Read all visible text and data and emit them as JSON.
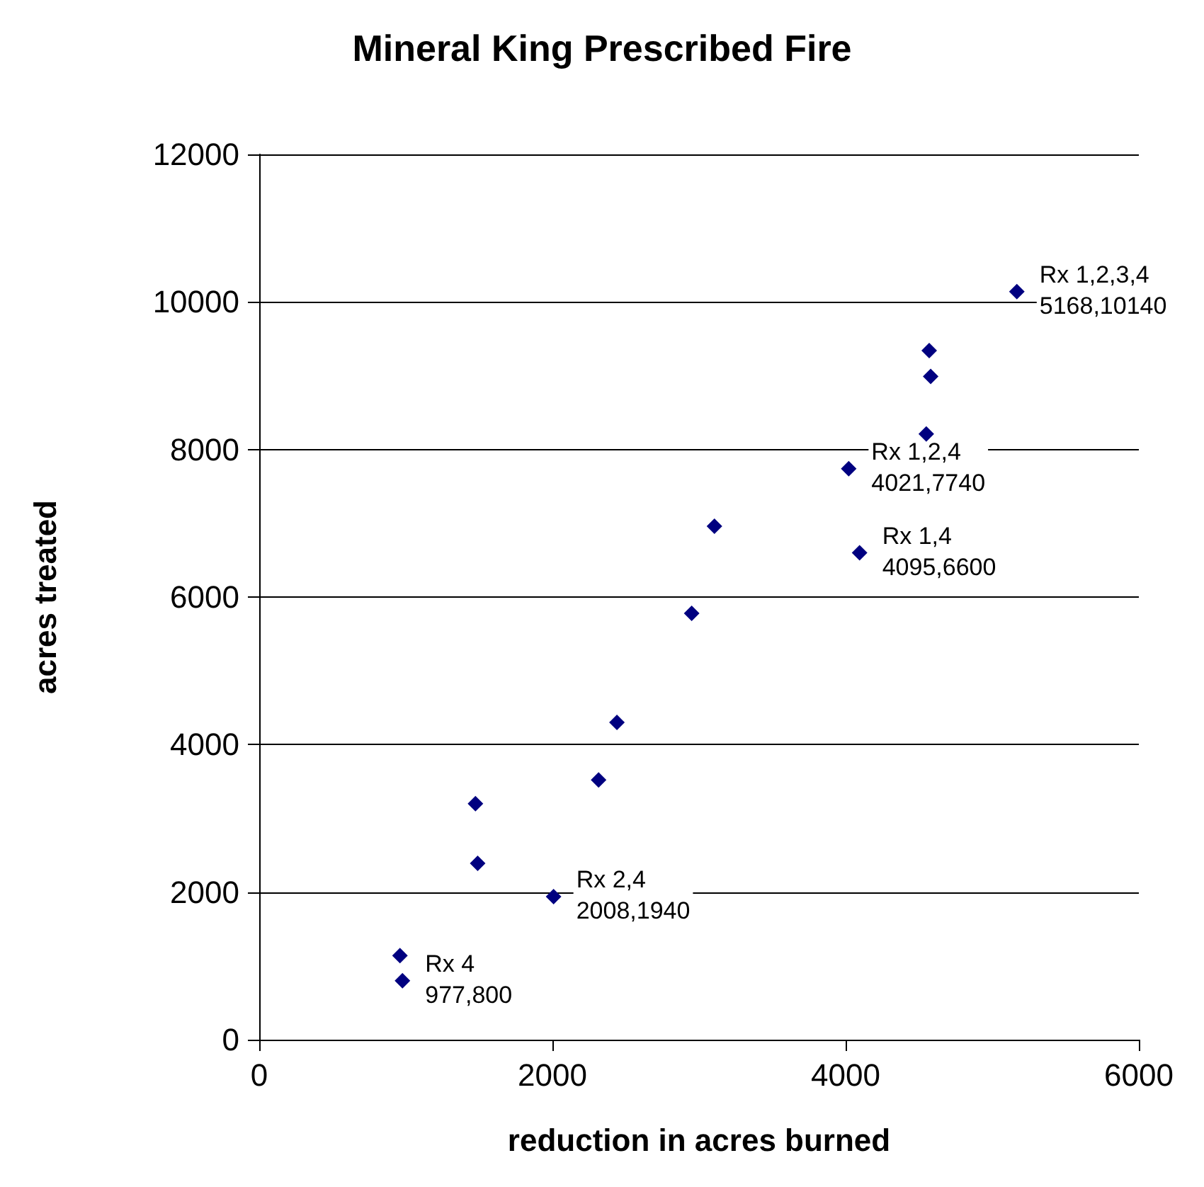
{
  "chart_data": {
    "type": "scatter",
    "title": "Mineral King Prescribed Fire",
    "xlabel": "reduction in acres burned",
    "ylabel": "acres treated",
    "x": [
      960,
      977,
      1475,
      1490,
      2008,
      2315,
      2440,
      2950,
      3105,
      4021,
      4095,
      4550,
      4580,
      4570,
      5168
    ],
    "series": [
      {
        "color": "#000080",
        "values": [
          1140,
          800,
          3200,
          2390,
          1940,
          3520,
          4300,
          5780,
          6960,
          7740,
          6600,
          8210,
          8990,
          9340,
          10140
        ]
      }
    ],
    "xlim": [
      0,
      6000
    ],
    "xticks": [
      0,
      2000,
      4000,
      6000
    ],
    "ylim": [
      0,
      12000
    ],
    "yticks": [
      0,
      2000,
      4000,
      6000,
      8000,
      10000,
      12000
    ],
    "grid": "y",
    "marker": "diamond",
    "annotations": [
      {
        "text": "Rx 1,2,3,4\n5168,10140",
        "x": 5168,
        "y": 10140
      },
      {
        "text": "Rx 1,2,4\n4021,7740",
        "x": 4021,
        "y": 7740
      },
      {
        "text": "Rx 1,4\n4095,6600",
        "x": 4095,
        "y": 6600
      },
      {
        "text": "Rx 2,4\n2008,1940",
        "x": 2008,
        "y": 1940
      },
      {
        "text": "Rx 4\n977,800",
        "x": 977,
        "y": 800
      }
    ]
  }
}
